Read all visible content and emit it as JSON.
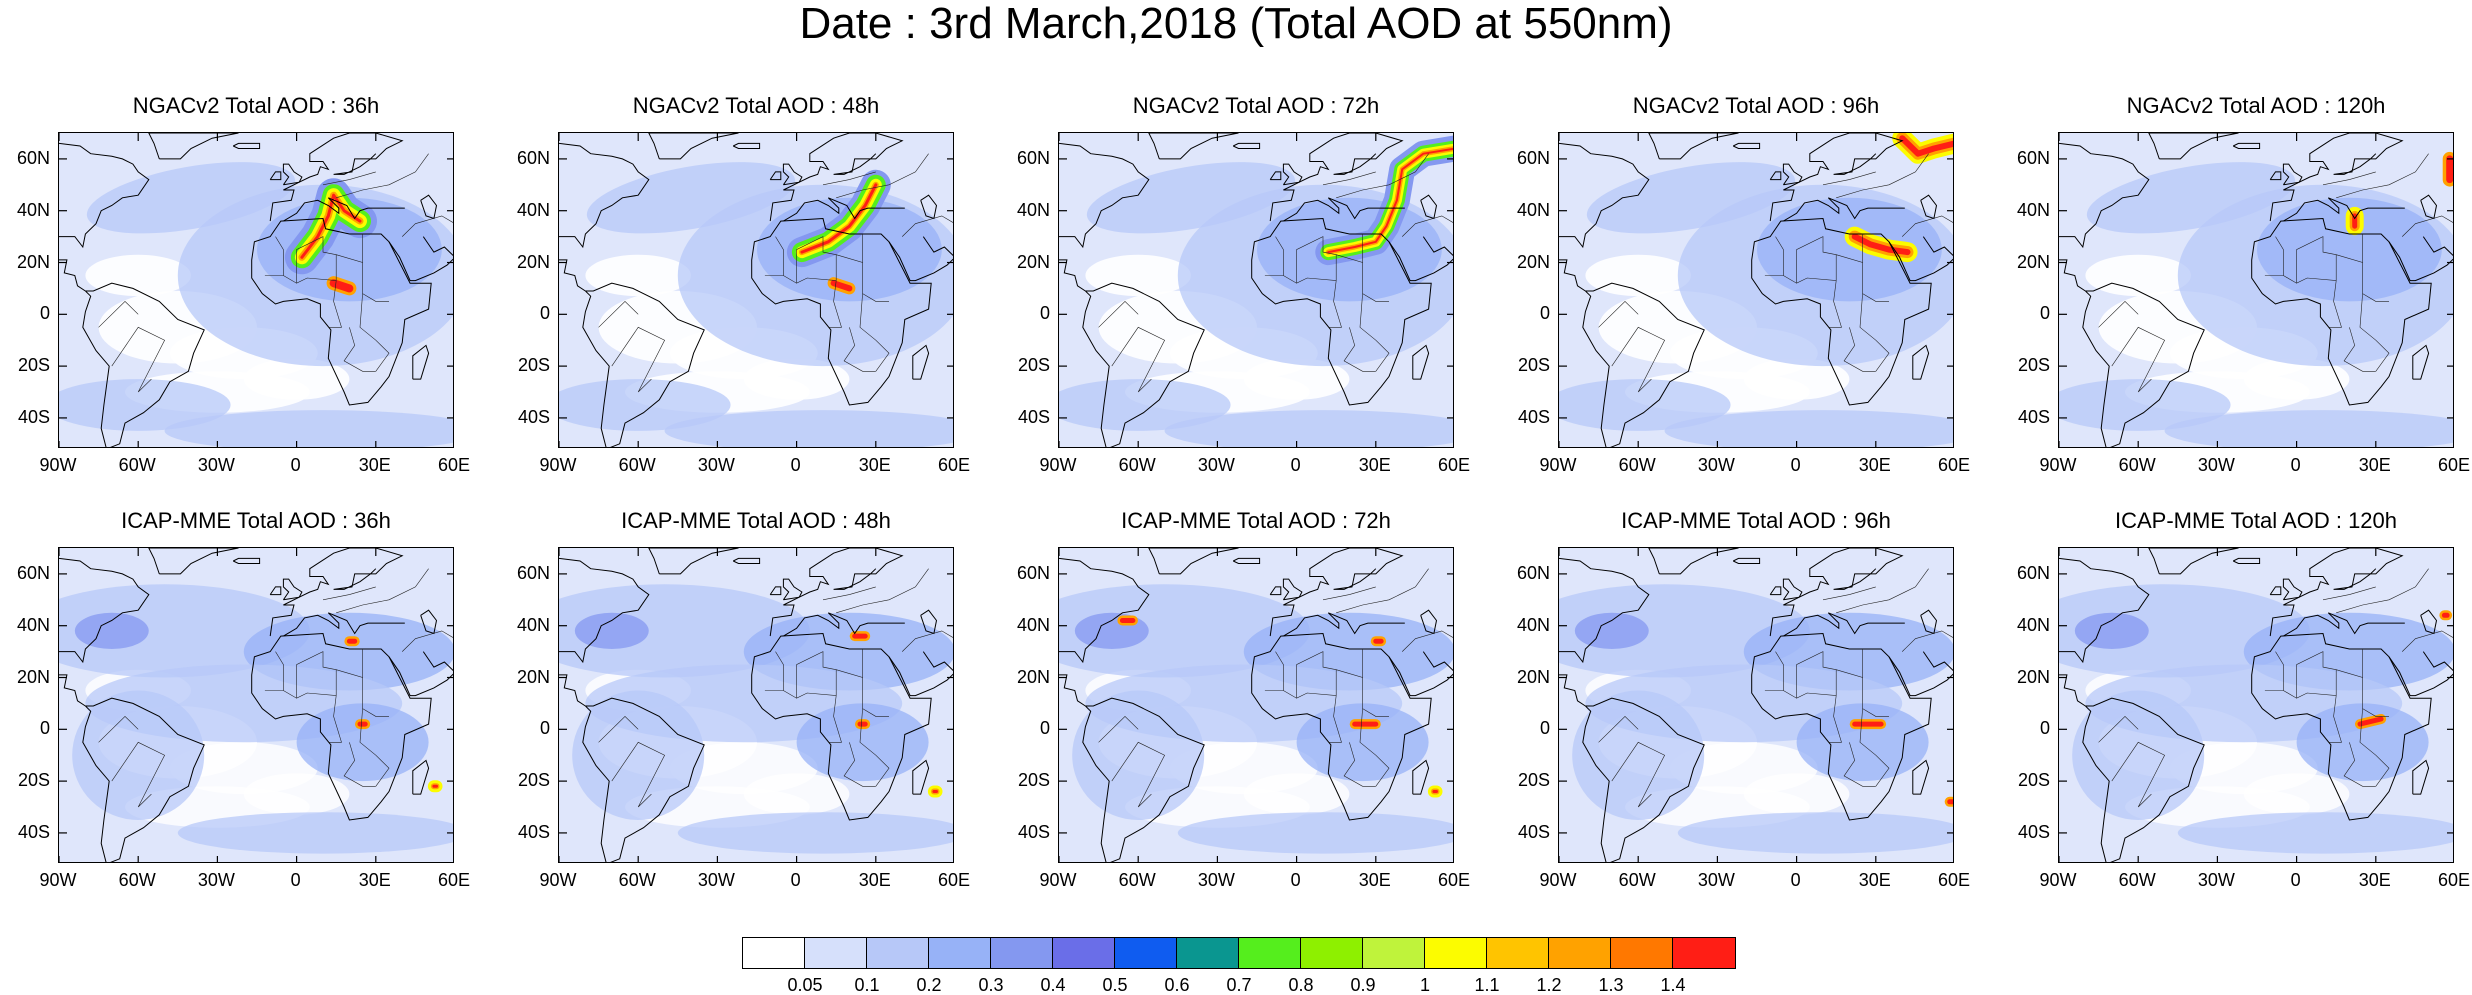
{
  "title": "Date : 3rd March,2018 (Total AOD at 550nm)",
  "panels": [
    {
      "title": "NGACv2 Total AOD : 36h"
    },
    {
      "title": "NGACv2 Total AOD : 48h"
    },
    {
      "title": "NGACv2 Total AOD : 72h"
    },
    {
      "title": "NGACv2 Total AOD : 96h"
    },
    {
      "title": "NGACv2 Total AOD : 120h"
    },
    {
      "title": "ICAP-MME Total AOD : 36h"
    },
    {
      "title": "ICAP-MME Total AOD : 48h"
    },
    {
      "title": "ICAP-MME Total AOD : 72h"
    },
    {
      "title": "ICAP-MME Total AOD : 96h"
    },
    {
      "title": "ICAP-MME Total AOD : 120h"
    }
  ],
  "lat_labels": [
    "60N",
    "40N",
    "20N",
    "0",
    "20S",
    "40S"
  ],
  "lon_labels": [
    "90W",
    "60W",
    "30W",
    "0",
    "30E",
    "60E"
  ],
  "colorbar": {
    "colors": [
      "#ffffff",
      "#d6e0fb",
      "#b7c8f8",
      "#97b2f7",
      "#8498f0",
      "#6a6ee8",
      "#0f5cf0",
      "#0a9690",
      "#55ee1d",
      "#8ef000",
      "#bff33b",
      "#fcfc00",
      "#ffc400",
      "#ffa200",
      "#ff7800",
      "#ff1e15"
    ],
    "labels": [
      "0.05",
      "0.1",
      "0.2",
      "0.3",
      "0.4",
      "0.5",
      "0.6",
      "0.7",
      "0.8",
      "0.9",
      "1",
      "1.1",
      "1.2",
      "1.3",
      "1.4"
    ]
  }
}
